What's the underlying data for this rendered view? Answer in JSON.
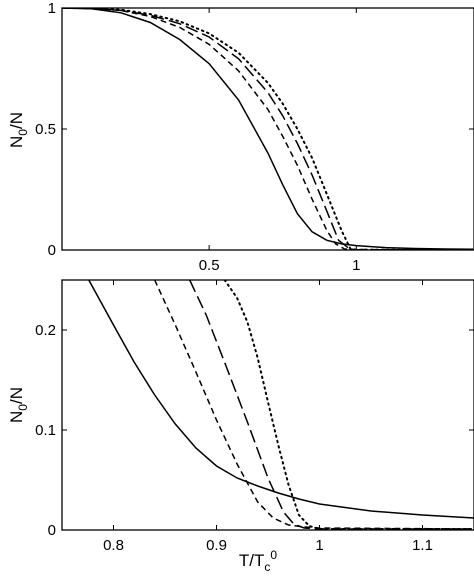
{
  "chart_data": [
    {
      "type": "line",
      "title": "",
      "xlabel": "",
      "ylabel": {
        "main": "N",
        "sub": "0",
        "rest": "/N"
      },
      "xlim": [
        0,
        1.4
      ],
      "ylim": [
        0,
        1
      ],
      "xticks": [
        0.5,
        1
      ],
      "xtick_labels": [
        "0.5",
        "1"
      ],
      "yticks": [
        0,
        0.5,
        1
      ],
      "ytick_labels": [
        "0",
        "0.5",
        "1"
      ],
      "grid": false,
      "series": [
        {
          "style": "solid",
          "x": [
            0,
            0.1,
            0.2,
            0.3,
            0.4,
            0.5,
            0.6,
            0.7,
            0.75,
            0.8,
            0.85,
            0.9,
            0.95,
            1.0,
            1.1,
            1.2,
            1.3,
            1.4
          ],
          "y": [
            1.0,
            0.997,
            0.98,
            0.94,
            0.87,
            0.77,
            0.62,
            0.4,
            0.27,
            0.15,
            0.075,
            0.04,
            0.025,
            0.018,
            0.01,
            0.006,
            0.004,
            0.003
          ]
        },
        {
          "style": "dashed",
          "x": [
            0,
            0.1,
            0.2,
            0.3,
            0.4,
            0.5,
            0.6,
            0.7,
            0.75,
            0.8,
            0.85,
            0.9,
            0.93,
            0.96,
            1.0,
            1.2,
            1.4
          ],
          "y": [
            1.0,
            0.998,
            0.99,
            0.965,
            0.92,
            0.85,
            0.74,
            0.58,
            0.47,
            0.35,
            0.21,
            0.08,
            0.025,
            0.004,
            0.002,
            0.001,
            0.001
          ]
        },
        {
          "style": "long-dashed",
          "x": [
            0,
            0.1,
            0.2,
            0.3,
            0.4,
            0.5,
            0.6,
            0.7,
            0.75,
            0.8,
            0.85,
            0.9,
            0.94,
            0.98,
            1.0,
            1.2,
            1.4
          ],
          "y": [
            1.0,
            0.998,
            0.99,
            0.97,
            0.935,
            0.88,
            0.79,
            0.65,
            0.555,
            0.44,
            0.31,
            0.16,
            0.04,
            0.002,
            0.001,
            0.001,
            0.001
          ]
        },
        {
          "style": "dotted",
          "x": [
            0,
            0.1,
            0.2,
            0.3,
            0.4,
            0.5,
            0.6,
            0.7,
            0.75,
            0.8,
            0.85,
            0.9,
            0.95,
            0.98,
            1.0,
            1.2,
            1.4
          ],
          "y": [
            1.0,
            0.999,
            0.993,
            0.975,
            0.945,
            0.895,
            0.815,
            0.69,
            0.605,
            0.5,
            0.38,
            0.23,
            0.08,
            0.005,
            0.001,
            0.001,
            0.001
          ]
        }
      ]
    },
    {
      "type": "line",
      "title": "",
      "xlabel": {
        "main": "T/T",
        "sub": "c",
        "sup": "0"
      },
      "ylabel": {
        "main": "N",
        "sub": "0",
        "rest": "/N"
      },
      "xlim": [
        0.75,
        1.15
      ],
      "ylim": [
        0,
        0.25
      ],
      "xticks": [
        0.8,
        0.9,
        1,
        1.1
      ],
      "xtick_labels": [
        "0.8",
        "0.9",
        "1",
        "1.1"
      ],
      "yticks": [
        0,
        0.1,
        0.2
      ],
      "ytick_labels": [
        "0",
        "0.1",
        "0.2"
      ],
      "grid": false,
      "series": [
        {
          "style": "solid",
          "x": [
            0.776,
            0.8,
            0.82,
            0.84,
            0.86,
            0.88,
            0.9,
            0.92,
            0.94,
            0.96,
            0.98,
            1.0,
            1.05,
            1.1,
            1.15
          ],
          "y": [
            0.25,
            0.205,
            0.168,
            0.135,
            0.106,
            0.082,
            0.064,
            0.052,
            0.044,
            0.037,
            0.031,
            0.026,
            0.019,
            0.015,
            0.012
          ]
        },
        {
          "style": "dashed",
          "x": [
            0.84,
            0.86,
            0.88,
            0.9,
            0.92,
            0.94,
            0.955,
            0.97,
            0.985,
            1.0,
            1.15
          ],
          "y": [
            0.25,
            0.205,
            0.158,
            0.11,
            0.066,
            0.028,
            0.012,
            0.005,
            0.003,
            0.002,
            0.001
          ]
        },
        {
          "style": "long-dashed",
          "x": [
            0.874,
            0.89,
            0.91,
            0.93,
            0.95,
            0.965,
            0.975,
            0.985,
            1.0,
            1.15
          ],
          "y": [
            0.25,
            0.215,
            0.162,
            0.108,
            0.052,
            0.018,
            0.006,
            0.002,
            0.001,
            0.001
          ]
        },
        {
          "style": "dotted",
          "x": [
            0.908,
            0.92,
            0.93,
            0.94,
            0.95,
            0.96,
            0.97,
            0.98,
            0.99,
            1.0,
            1.15
          ],
          "y": [
            0.25,
            0.232,
            0.208,
            0.172,
            0.128,
            0.085,
            0.045,
            0.015,
            0.004,
            0.001,
            0.001
          ]
        }
      ]
    }
  ]
}
